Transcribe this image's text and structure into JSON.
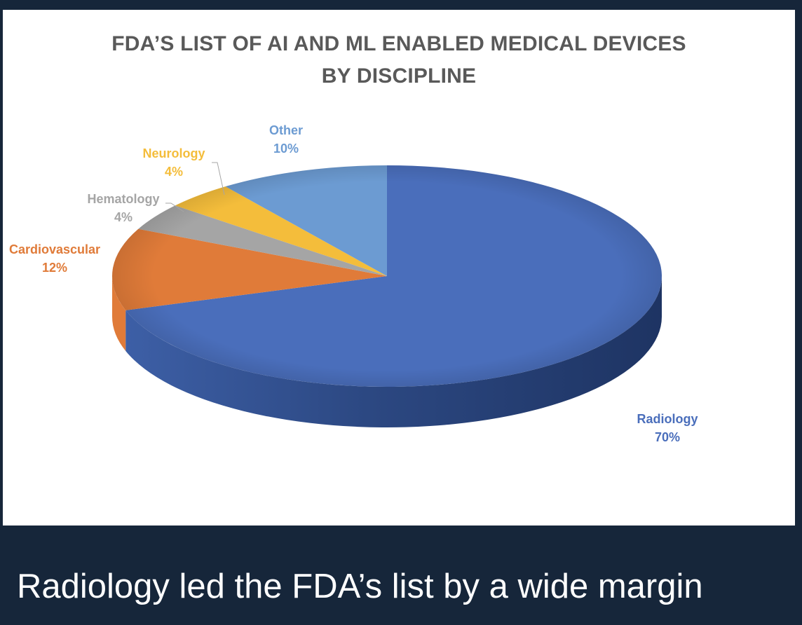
{
  "chart_data": {
    "type": "pie",
    "title_lines": [
      "FDA’S LIST OF AI AND ML ENABLED MEDICAL DEVICES",
      "BY DISCIPLINE"
    ],
    "slices": [
      {
        "label": "Radiology",
        "value": 70,
        "value_label": "70%",
        "color": "#4a6ebb",
        "text_color": "#4a6ebb",
        "leader": false
      },
      {
        "label": "Cardiovascular",
        "value": 12,
        "value_label": "12%",
        "color": "#e07b39",
        "text_color": "#e07b39",
        "leader": false
      },
      {
        "label": "Hematology",
        "value": 4,
        "value_label": "4%",
        "color": "#a5a5a5",
        "text_color": "#a5a5a5",
        "leader": true
      },
      {
        "label": "Neurology",
        "value": 4,
        "value_label": "4%",
        "color": "#f4bd3b",
        "text_color": "#f4bd3b",
        "leader": true
      },
      {
        "label": "Other",
        "value": 10,
        "value_label": "10%",
        "color": "#6c9bd2",
        "text_color": "#6c9bd2",
        "leader": false
      }
    ],
    "start": "12 o'clock",
    "direction": "clockwise",
    "style": "3d-tilted"
  },
  "caption": "Radiology led the FDA’s list by a wide margin"
}
